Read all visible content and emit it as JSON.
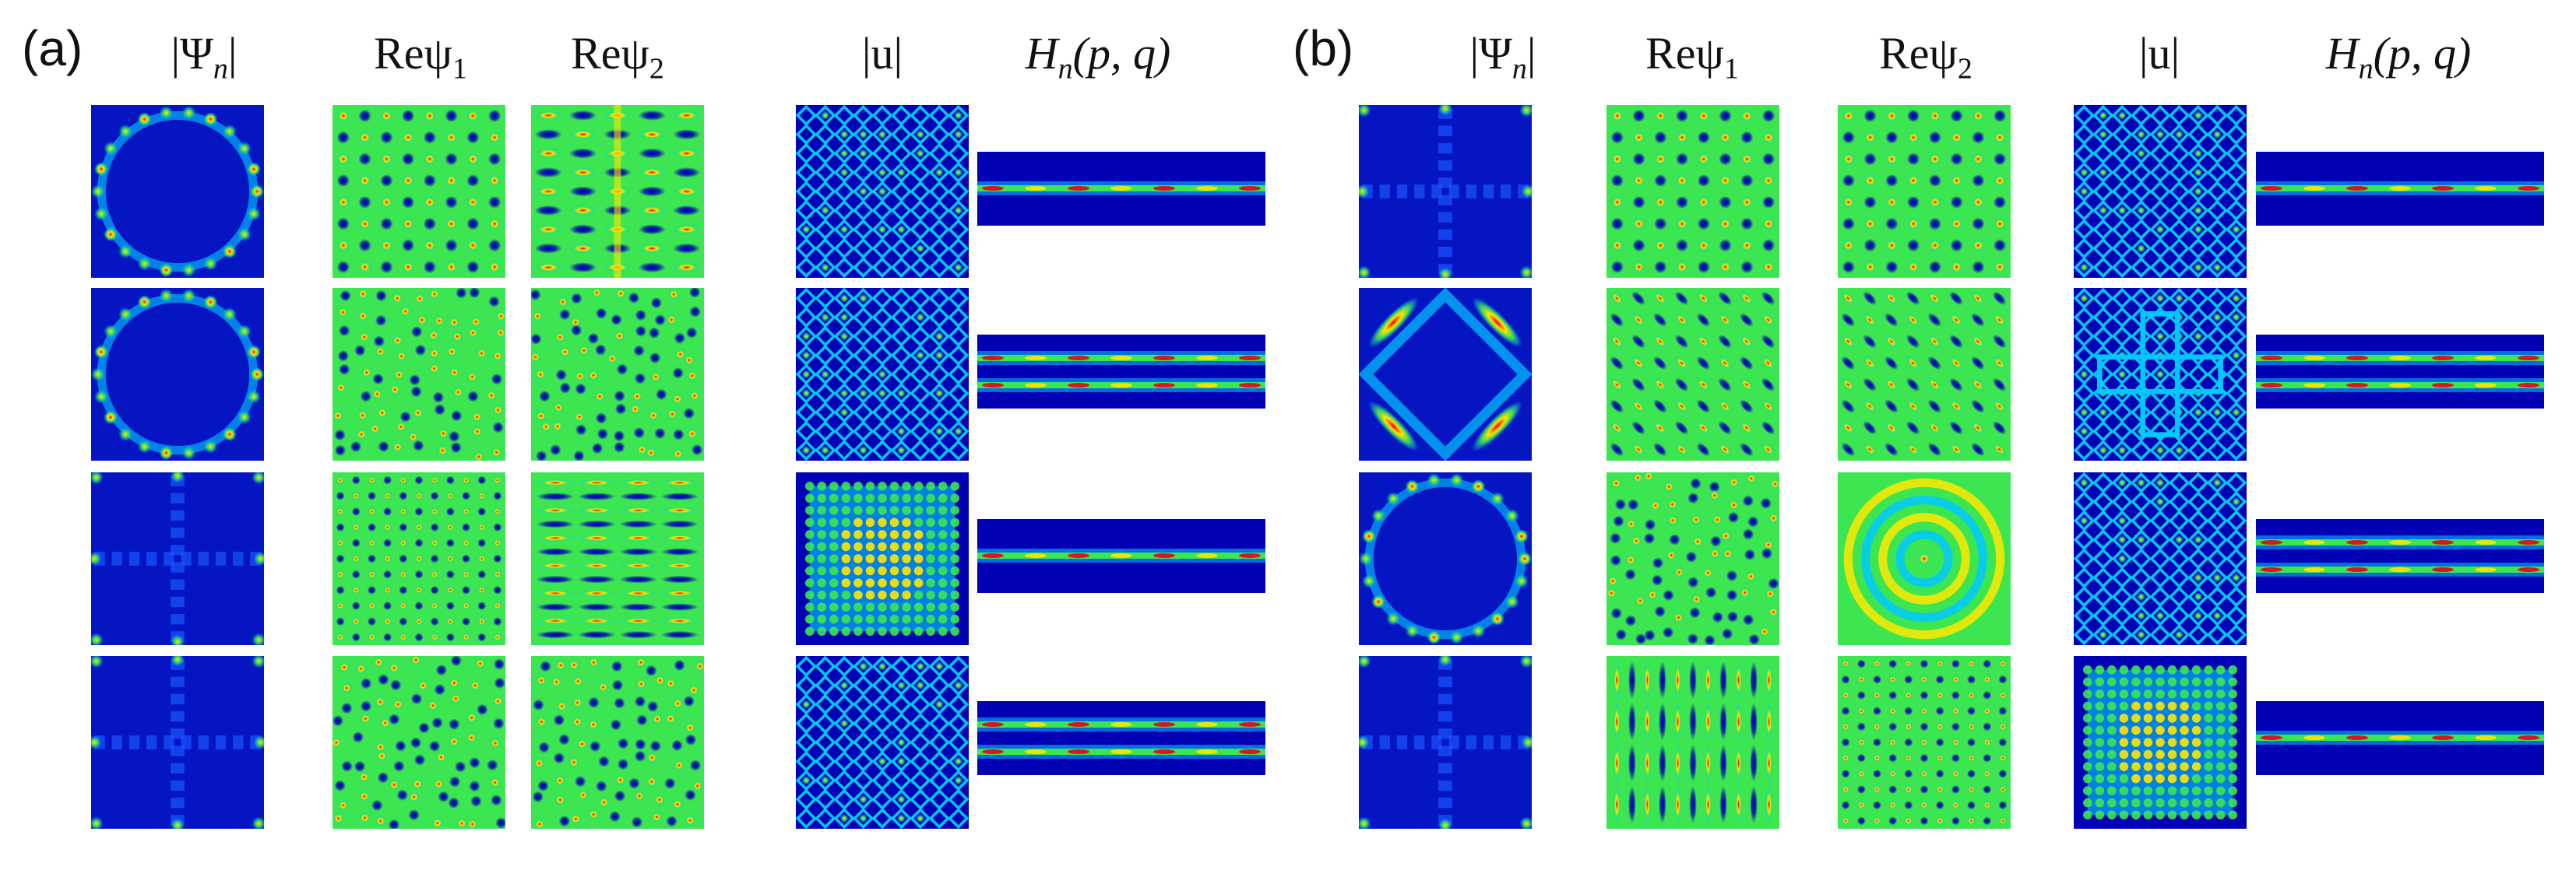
{
  "figure": {
    "panels": [
      {
        "label": "(a)",
        "headers": {
          "psi_abs": {
            "pre": "|Ψ",
            "sub": "n",
            "post": "|"
          },
          "re_psi1": {
            "pre": "Reψ",
            "sub": "1",
            "post": ""
          },
          "re_psi2": {
            "pre": "Reψ",
            "sub": "2",
            "post": ""
          },
          "u_abs": {
            "pre": "|u|",
            "sub": "",
            "post": ""
          },
          "husimi": {
            "pre": "H",
            "sub": "n",
            "post": "(p, q)"
          }
        },
        "rows": [
          {
            "psi_abs": "ring-edge",
            "re_psi1": "quadrant-grid",
            "re_psi2": "horizontal-wavy",
            "u_abs": "diamond-lattice",
            "husimi": "single-band"
          },
          {
            "psi_abs": "ring-edge",
            "re_psi1": "irregular-blobs",
            "re_psi2": "irregular-blobs",
            "u_abs": "diamond-lattice",
            "husimi": "double-band"
          },
          {
            "psi_abs": "dark-cross",
            "re_psi1": "dense-grid",
            "re_psi2": "horizontal-stripes",
            "u_abs": "bright-square",
            "husimi": "single-band"
          },
          {
            "psi_abs": "dark-cross",
            "re_psi1": "irregular-blobs",
            "re_psi2": "irregular-blobs",
            "u_abs": "diamond-lattice",
            "husimi": "double-band"
          }
        ]
      },
      {
        "label": "(b)",
        "headers": {
          "psi_abs": {
            "pre": "|Ψ",
            "sub": "n",
            "post": "|"
          },
          "re_psi1": {
            "pre": "Reψ",
            "sub": "1",
            "post": ""
          },
          "re_psi2": {
            "pre": "Reψ",
            "sub": "2",
            "post": ""
          },
          "u_abs": {
            "pre": "|u|",
            "sub": "",
            "post": ""
          },
          "husimi": {
            "pre": "H",
            "sub": "n",
            "post": "(p, q)"
          }
        },
        "rows": [
          {
            "psi_abs": "dark-cross",
            "re_psi1": "quadrant-grid",
            "re_psi2": "quadrant-grid",
            "u_abs": "diamond-lattice",
            "husimi": "single-band"
          },
          {
            "psi_abs": "diamond-edge",
            "re_psi1": "diagonal-blobs",
            "re_psi2": "diagonal-blobs",
            "u_abs": "cross-lattice",
            "husimi": "double-band"
          },
          {
            "psi_abs": "ring-edge",
            "re_psi1": "irregular-blobs",
            "re_psi2": "concentric-rings",
            "u_abs": "diamond-lattice",
            "husimi": "double-band"
          },
          {
            "psi_abs": "dark-cross",
            "re_psi1": "vertical-stripes",
            "re_psi2": "dense-grid",
            "u_abs": "bright-square",
            "husimi": "single-band"
          }
        ]
      }
    ],
    "colormap": {
      "low": "#0000b4",
      "mid_low": "#00c8ff",
      "mid": "#3ce650",
      "mid_high": "#ffe600",
      "high": "#e6001e"
    }
  }
}
